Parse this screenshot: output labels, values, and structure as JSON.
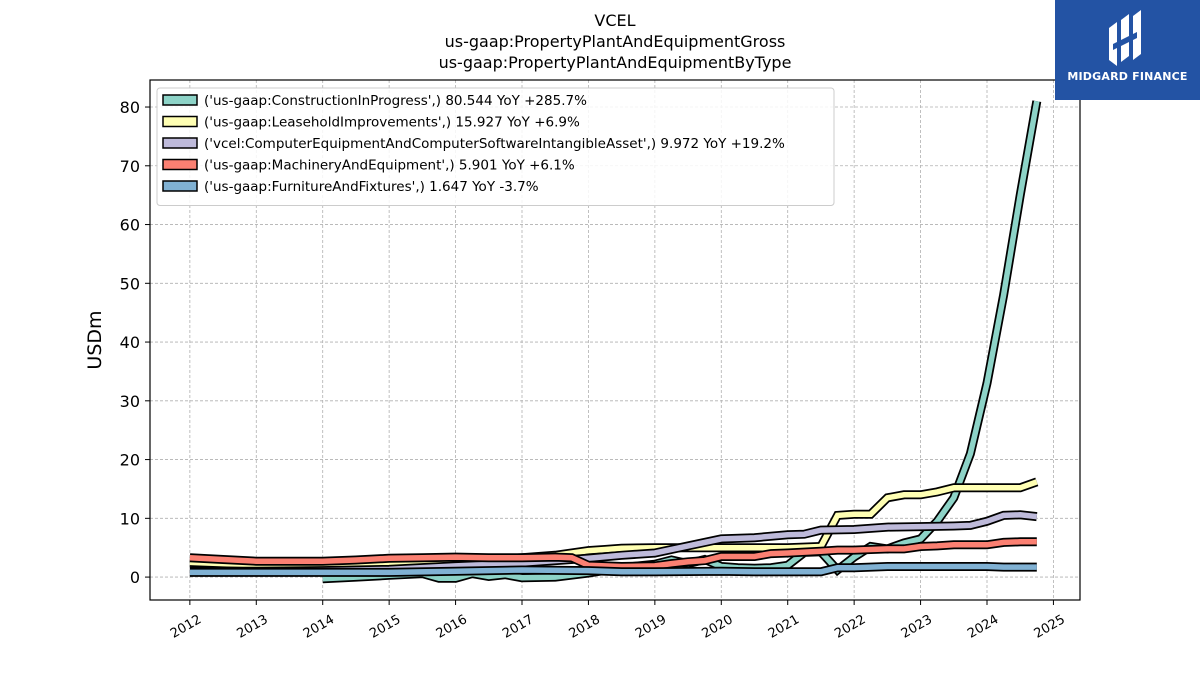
{
  "title_lines": [
    "VCEL",
    "us-gaap:PropertyPlantAndEquipmentGross",
    "us-gaap:PropertyPlantAndEquipmentByType"
  ],
  "logo": {
    "text": "MIDGARD FINANCE",
    "bg_color": "#2353a4",
    "icon": "midgard-logo-icon"
  },
  "chart_data": {
    "type": "line",
    "title": "VCEL",
    "ylabel": "USDm",
    "xlabel": "",
    "xlim": [
      2011.4,
      2025.4
    ],
    "ylim": [
      -3.9,
      84.6
    ],
    "xticks": [
      2012,
      2013,
      2014,
      2015,
      2016,
      2017,
      2018,
      2019,
      2020,
      2021,
      2022,
      2023,
      2024,
      2025
    ],
    "xtick_labels": [
      "2012",
      "2013",
      "2014",
      "2015",
      "2016",
      "2017",
      "2018",
      "2019",
      "2020",
      "2021",
      "2022",
      "2023",
      "2024",
      "2025"
    ],
    "yticks": [
      0,
      10,
      20,
      30,
      40,
      50,
      60,
      70,
      80
    ],
    "ytick_labels": [
      "0",
      "10",
      "20",
      "30",
      "40",
      "50",
      "60",
      "70",
      "80"
    ],
    "grid": true,
    "legend_position": "top-left",
    "series": [
      {
        "name": "('us-gaap:ConstructionInProgress',) 80.544 YoY +285.7%",
        "color": "#8dd3c7",
        "points": [
          [
            2014.0,
            -0.3
          ],
          [
            2014.5,
            0.0
          ],
          [
            2015.0,
            0.3
          ],
          [
            2015.5,
            0.6
          ],
          [
            2015.75,
            -0.2
          ],
          [
            2016.0,
            -0.2
          ],
          [
            2016.25,
            0.6
          ],
          [
            2016.5,
            0.1
          ],
          [
            2016.75,
            0.4
          ],
          [
            2017.0,
            -0.1
          ],
          [
            2017.5,
            0.0
          ],
          [
            2018.0,
            0.7
          ],
          [
            2018.5,
            1.6
          ],
          [
            2019.0,
            2.2
          ],
          [
            2019.25,
            2.9
          ],
          [
            2019.5,
            2.3
          ],
          [
            2019.75,
            3.0
          ],
          [
            2020.0,
            1.8
          ],
          [
            2020.25,
            1.6
          ],
          [
            2020.5,
            1.5
          ],
          [
            2020.75,
            1.6
          ],
          [
            2021.0,
            2.0
          ],
          [
            2021.25,
            4.2
          ],
          [
            2021.5,
            4.3
          ],
          [
            2021.75,
            1.2
          ],
          [
            2022.0,
            3.4
          ],
          [
            2022.25,
            5.2
          ],
          [
            2022.5,
            4.8
          ],
          [
            2022.75,
            5.8
          ],
          [
            2023.0,
            6.5
          ],
          [
            2023.25,
            9.5
          ],
          [
            2023.5,
            13.5
          ],
          [
            2023.75,
            21.0
          ],
          [
            2024.0,
            33.0
          ],
          [
            2024.25,
            48.0
          ],
          [
            2024.5,
            65.0
          ],
          [
            2024.75,
            81.0
          ]
        ]
      },
      {
        "name": "('us-gaap:LeaseholdImprovements',) 15.927 YoY +6.9%",
        "color": "#ffffb3",
        "points": [
          [
            2012.0,
            2.5
          ],
          [
            2012.5,
            2.3
          ],
          [
            2013.0,
            2.1
          ],
          [
            2013.5,
            2.1
          ],
          [
            2014.0,
            2.2
          ],
          [
            2014.5,
            2.3
          ],
          [
            2015.0,
            2.5
          ],
          [
            2015.5,
            2.6
          ],
          [
            2016.0,
            2.8
          ],
          [
            2016.5,
            3.0
          ],
          [
            2017.0,
            3.3
          ],
          [
            2017.5,
            3.7
          ],
          [
            2018.0,
            4.5
          ],
          [
            2018.25,
            4.7
          ],
          [
            2018.5,
            4.9
          ],
          [
            2019.0,
            5.0
          ],
          [
            2019.5,
            5.0
          ],
          [
            2020.0,
            5.0
          ],
          [
            2020.5,
            5.0
          ],
          [
            2021.0,
            5.0
          ],
          [
            2021.5,
            5.2
          ],
          [
            2021.75,
            10.5
          ],
          [
            2022.0,
            10.7
          ],
          [
            2022.25,
            10.7
          ],
          [
            2022.5,
            13.5
          ],
          [
            2022.75,
            14.0
          ],
          [
            2023.0,
            14.0
          ],
          [
            2023.25,
            14.5
          ],
          [
            2023.5,
            15.2
          ],
          [
            2023.75,
            15.2
          ],
          [
            2024.0,
            15.2
          ],
          [
            2024.25,
            15.2
          ],
          [
            2024.5,
            15.2
          ],
          [
            2024.75,
            16.2
          ]
        ]
      },
      {
        "name": "('vcel:ComputerEquipmentAndComputerSoftwareIntangibleAsset',) 9.972 YoY +19.2%",
        "color": "#bebada",
        "points": [
          [
            2012.0,
            1.0
          ],
          [
            2013.0,
            1.0
          ],
          [
            2014.0,
            1.1
          ],
          [
            2015.0,
            1.3
          ],
          [
            2016.0,
            1.9
          ],
          [
            2017.0,
            2.4
          ],
          [
            2018.0,
            3.2
          ],
          [
            2018.5,
            3.7
          ],
          [
            2019.0,
            4.1
          ],
          [
            2019.5,
            5.3
          ],
          [
            2020.0,
            6.5
          ],
          [
            2020.5,
            6.7
          ],
          [
            2021.0,
            7.2
          ],
          [
            2021.25,
            7.3
          ],
          [
            2021.5,
            8.0
          ],
          [
            2022.0,
            8.1
          ],
          [
            2022.5,
            8.5
          ],
          [
            2023.0,
            8.6
          ],
          [
            2023.5,
            8.7
          ],
          [
            2023.75,
            8.8
          ],
          [
            2024.0,
            9.5
          ],
          [
            2024.25,
            10.5
          ],
          [
            2024.5,
            10.6
          ],
          [
            2024.75,
            10.3
          ]
        ]
      },
      {
        "name": "('us-gaap:MachineryAndEquipment',) 5.901 YoY +6.1%",
        "color": "#fb8072",
        "points": [
          [
            2012.0,
            3.3
          ],
          [
            2012.5,
            3.0
          ],
          [
            2013.0,
            2.7
          ],
          [
            2013.5,
            2.7
          ],
          [
            2014.0,
            2.7
          ],
          [
            2014.5,
            2.9
          ],
          [
            2015.0,
            3.2
          ],
          [
            2015.5,
            3.3
          ],
          [
            2016.0,
            3.4
          ],
          [
            2016.5,
            3.3
          ],
          [
            2017.0,
            3.3
          ],
          [
            2017.5,
            3.4
          ],
          [
            2017.75,
            3.3
          ],
          [
            2018.0,
            2.0
          ],
          [
            2018.5,
            1.8
          ],
          [
            2019.0,
            1.9
          ],
          [
            2019.25,
            2.3
          ],
          [
            2019.5,
            2.6
          ],
          [
            2019.75,
            2.8
          ],
          [
            2020.0,
            3.5
          ],
          [
            2020.5,
            3.5
          ],
          [
            2020.75,
            4.0
          ],
          [
            2021.0,
            4.1
          ],
          [
            2021.5,
            4.4
          ],
          [
            2021.75,
            4.6
          ],
          [
            2022.0,
            4.6
          ],
          [
            2022.5,
            4.8
          ],
          [
            2022.75,
            4.8
          ],
          [
            2023.0,
            5.2
          ],
          [
            2023.25,
            5.3
          ],
          [
            2023.5,
            5.5
          ],
          [
            2024.0,
            5.5
          ],
          [
            2024.25,
            5.9
          ],
          [
            2024.5,
            6.0
          ],
          [
            2024.75,
            6.0
          ]
        ]
      },
      {
        "name": "('us-gaap:FurnitureAndFixtures',) 1.647 YoY -3.7%",
        "color": "#80b1d3",
        "points": [
          [
            2012.0,
            0.8
          ],
          [
            2013.0,
            0.8
          ],
          [
            2014.0,
            0.8
          ],
          [
            2015.0,
            0.8
          ],
          [
            2016.0,
            1.0
          ],
          [
            2017.0,
            1.2
          ],
          [
            2018.0,
            1.1
          ],
          [
            2018.5,
            0.9
          ],
          [
            2019.0,
            0.9
          ],
          [
            2020.0,
            1.0
          ],
          [
            2020.5,
            0.9
          ],
          [
            2021.0,
            0.9
          ],
          [
            2021.5,
            0.9
          ],
          [
            2021.75,
            1.6
          ],
          [
            2022.0,
            1.6
          ],
          [
            2022.5,
            1.8
          ],
          [
            2023.0,
            1.8
          ],
          [
            2024.0,
            1.8
          ],
          [
            2024.25,
            1.7
          ],
          [
            2024.75,
            1.7
          ]
        ]
      }
    ]
  }
}
